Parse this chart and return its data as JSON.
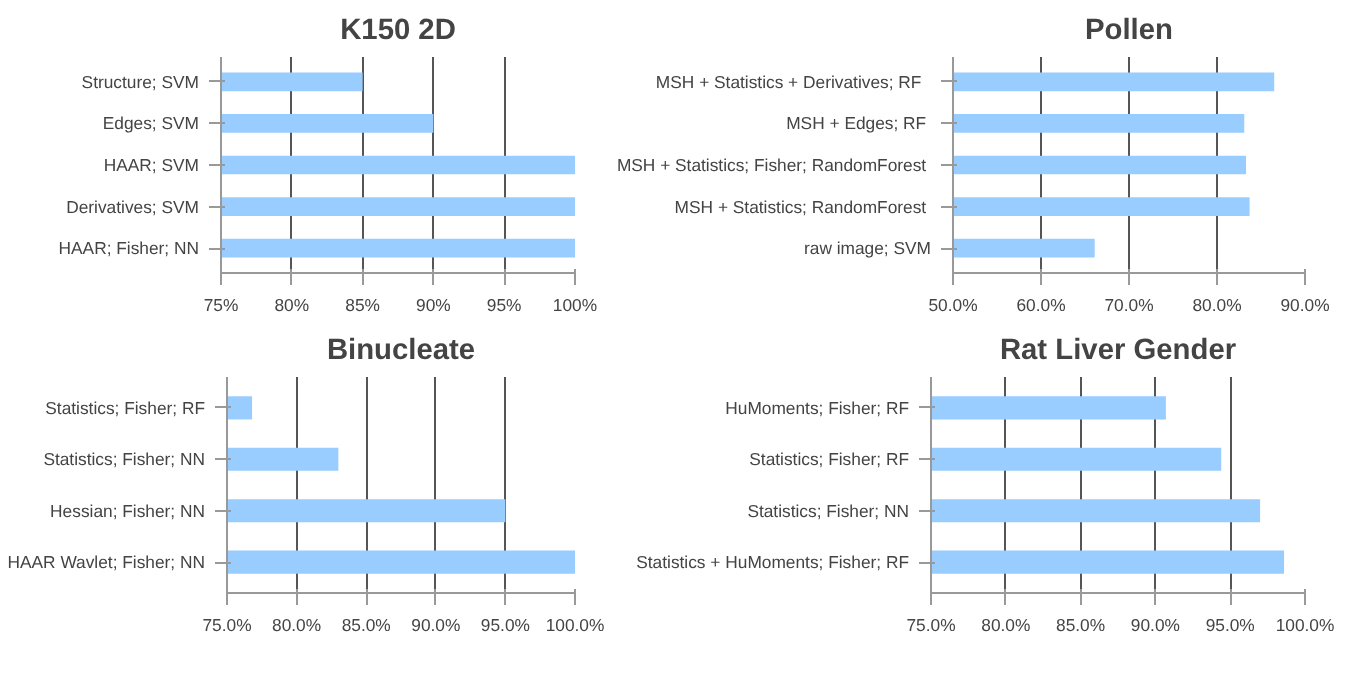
{
  "chart_data": [
    {
      "type": "bar",
      "orientation": "horizontal",
      "title": "K150 2D",
      "categories": [
        "Structure; SVM",
        "Edges; SVM",
        "HAAR; SVM",
        "Derivatives; SVM",
        "HAAR; Fisher; NN"
      ],
      "values": [
        85,
        90,
        100,
        100,
        100
      ],
      "color": "#99ccff",
      "xlim": [
        75,
        100
      ],
      "xticks": [
        {
          "value": 75,
          "label": "75%"
        },
        {
          "value": 80,
          "label": "80%"
        },
        {
          "value": 85,
          "label": "85%"
        },
        {
          "value": 90,
          "label": "90%"
        },
        {
          "value": 95,
          "label": "95%"
        },
        {
          "value": 100,
          "label": "100%"
        }
      ],
      "grid": "x"
    },
    {
      "type": "bar",
      "orientation": "horizontal",
      "title": "Pollen",
      "categories": [
        "MSH + Statistics  + Derivatives;  RF",
        "MSH + Edges;  RF",
        "MSH + Statistics; Fisher;  RandomForest",
        "MSH + Statistics;  RandomForest",
        "raw image; SVM"
      ],
      "values": [
        86.5,
        83.1,
        83.3,
        83.7,
        66.1
      ],
      "color": "#99ccff",
      "xlim": [
        50,
        90
      ],
      "xticks": [
        {
          "value": 50,
          "label": "50.0%"
        },
        {
          "value": 60,
          "label": "60.0%"
        },
        {
          "value": 70,
          "label": "70.0%"
        },
        {
          "value": 80,
          "label": "80.0%"
        },
        {
          "value": 90,
          "label": "90.0%"
        }
      ],
      "grid": "x"
    },
    {
      "type": "bar",
      "orientation": "horizontal",
      "title": "Binucleate",
      "categories": [
        "Statistics; Fisher; RF",
        "Statistics; Fisher; NN",
        "Hessian; Fisher; NN",
        "HAAR Wavlet; Fisher; NN"
      ],
      "values": [
        76.8,
        83,
        95,
        100
      ],
      "color": "#99ccff",
      "xlim": [
        75,
        100
      ],
      "xticks": [
        {
          "value": 75,
          "label": "75.0%"
        },
        {
          "value": 80,
          "label": "80.0%"
        },
        {
          "value": 85,
          "label": "85.0%"
        },
        {
          "value": 90,
          "label": "90.0%"
        },
        {
          "value": 95,
          "label": "95.0%"
        },
        {
          "value": 100,
          "label": "100.0%"
        }
      ],
      "grid": "x"
    },
    {
      "type": "bar",
      "orientation": "horizontal",
      "title": "Rat Liver Gender",
      "categories": [
        "HuMoments; Fisher; RF",
        "Statistics; Fisher; RF",
        "Statistics; Fisher; NN",
        "Statistics + HuMoments; Fisher; RF"
      ],
      "values": [
        90.7,
        94.4,
        97.0,
        98.6
      ],
      "color": "#99ccff",
      "xlim": [
        75,
        100
      ],
      "xticks": [
        {
          "value": 75,
          "label": "75.0%"
        },
        {
          "value": 80,
          "label": "80.0%"
        },
        {
          "value": 85,
          "label": "85.0%"
        },
        {
          "value": 90,
          "label": "90.0%"
        },
        {
          "value": 95,
          "label": "95.0%"
        },
        {
          "value": 100,
          "label": "100.0%"
        }
      ],
      "grid": "x"
    }
  ]
}
